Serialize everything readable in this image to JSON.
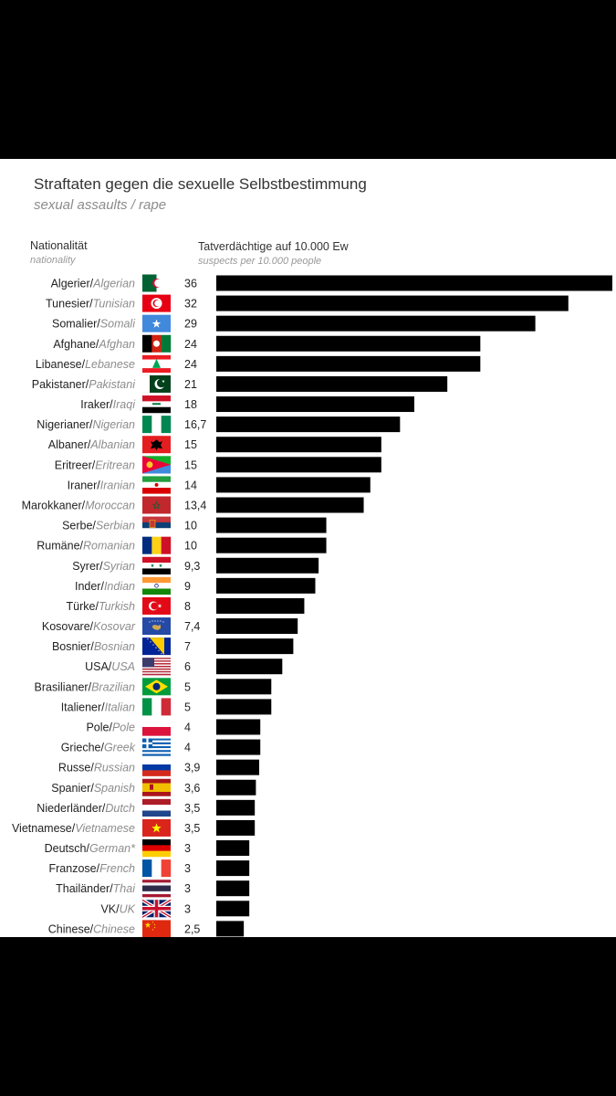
{
  "chart_data": {
    "type": "bar",
    "orientation": "horizontal",
    "title": "Straftaten gegen die sexuelle Selbstbestimmung",
    "subtitle": "sexual assaults / rape",
    "category_header": "Nationalität",
    "category_header_en": "nationality",
    "value_header": "Tatverdächtige auf 10.000 Ew",
    "value_header_en": "suspects per 10.000 people",
    "xlim": [
      0,
      36
    ],
    "bar_color": "#000000",
    "rows": [
      {
        "label": "Algerier",
        "label_en": "Algerian",
        "flag": "algeria-flag",
        "value": 36,
        "display": "36"
      },
      {
        "label": "Tunesier",
        "label_en": "Tunisian",
        "flag": "tunisia-flag",
        "value": 32,
        "display": "32"
      },
      {
        "label": "Somalier",
        "label_en": "Somali",
        "flag": "somalia-flag",
        "value": 29,
        "display": "29"
      },
      {
        "label": "Afghane",
        "label_en": "Afghan",
        "flag": "afghanistan-flag",
        "value": 24,
        "display": "24"
      },
      {
        "label": "Libanese",
        "label_en": "Lebanese",
        "flag": "lebanon-flag",
        "value": 24,
        "display": "24"
      },
      {
        "label": "Pakistaner",
        "label_en": "Pakistani",
        "flag": "pakistan-flag",
        "value": 21,
        "display": "21"
      },
      {
        "label": "Iraker",
        "label_en": "Iraqi",
        "flag": "iraq-flag",
        "value": 18,
        "display": "18"
      },
      {
        "label": "Nigerianer",
        "label_en": "Nigerian",
        "flag": "nigeria-flag",
        "value": 16.7,
        "display": "16,7"
      },
      {
        "label": "Albaner",
        "label_en": "Albanian",
        "flag": "albania-flag",
        "value": 15,
        "display": "15"
      },
      {
        "label": "Eritreer",
        "label_en": "Eritrean",
        "flag": "eritrea-flag",
        "value": 15,
        "display": "15"
      },
      {
        "label": "Iraner",
        "label_en": "Iranian",
        "flag": "iran-flag",
        "value": 14,
        "display": "14"
      },
      {
        "label": "Marokkaner",
        "label_en": "Moroccan",
        "flag": "morocco-flag",
        "value": 13.4,
        "display": "13,4"
      },
      {
        "label": "Serbe",
        "label_en": "Serbian",
        "flag": "serbia-flag",
        "value": 10,
        "display": "10"
      },
      {
        "label": "Rumäne",
        "label_en": "Romanian",
        "flag": "romania-flag",
        "value": 10,
        "display": "10"
      },
      {
        "label": "Syrer",
        "label_en": "Syrian",
        "flag": "syria-flag",
        "value": 9.3,
        "display": "9,3"
      },
      {
        "label": "Inder",
        "label_en": "Indian",
        "flag": "india-flag",
        "value": 9,
        "display": "9"
      },
      {
        "label": "Türke",
        "label_en": "Turkish",
        "flag": "turkey-flag",
        "value": 8,
        "display": "8"
      },
      {
        "label": "Kosovare",
        "label_en": "Kosovar",
        "flag": "kosovo-flag",
        "value": 7.4,
        "display": "7,4"
      },
      {
        "label": "Bosnier",
        "label_en": "Bosnian",
        "flag": "bosnia-flag",
        "value": 7,
        "display": "7"
      },
      {
        "label": "USA",
        "label_en": "USA",
        "flag": "usa-flag",
        "value": 6,
        "display": "6"
      },
      {
        "label": "Brasilianer",
        "label_en": "Brazilian",
        "flag": "brazil-flag",
        "value": 5,
        "display": "5"
      },
      {
        "label": "Italiener",
        "label_en": "Italian",
        "flag": "italy-flag",
        "value": 5,
        "display": "5"
      },
      {
        "label": "Pole",
        "label_en": "Pole",
        "flag": "poland-flag",
        "value": 4,
        "display": "4"
      },
      {
        "label": "Grieche",
        "label_en": "Greek",
        "flag": "greece-flag",
        "value": 4,
        "display": "4"
      },
      {
        "label": "Russe",
        "label_en": "Russian",
        "flag": "russia-flag",
        "value": 3.9,
        "display": "3,9"
      },
      {
        "label": "Spanier",
        "label_en": "Spanish",
        "flag": "spain-flag",
        "value": 3.6,
        "display": "3,6"
      },
      {
        "label": "Niederländer",
        "label_en": "Dutch",
        "flag": "netherlands-flag",
        "value": 3.5,
        "display": "3,5"
      },
      {
        "label": "Vietnamese",
        "label_en": "Vietnamese",
        "flag": "vietnam-flag",
        "value": 3.5,
        "display": "3,5"
      },
      {
        "label": "Deutsch",
        "label_en": "German*",
        "flag": "germany-flag",
        "value": 3,
        "display": "3"
      },
      {
        "label": "Franzose",
        "label_en": "French",
        "flag": "france-flag",
        "value": 3,
        "display": "3"
      },
      {
        "label": "Thailänder",
        "label_en": "Thai",
        "flag": "thailand-flag",
        "value": 3,
        "display": "3"
      },
      {
        "label": "VK",
        "label_en": "UK",
        "flag": "uk-flag",
        "value": 3,
        "display": "3"
      },
      {
        "label": "Chinese",
        "label_en": "Chinese",
        "flag": "china-flag",
        "value": 2.5,
        "display": "2,5"
      }
    ]
  }
}
